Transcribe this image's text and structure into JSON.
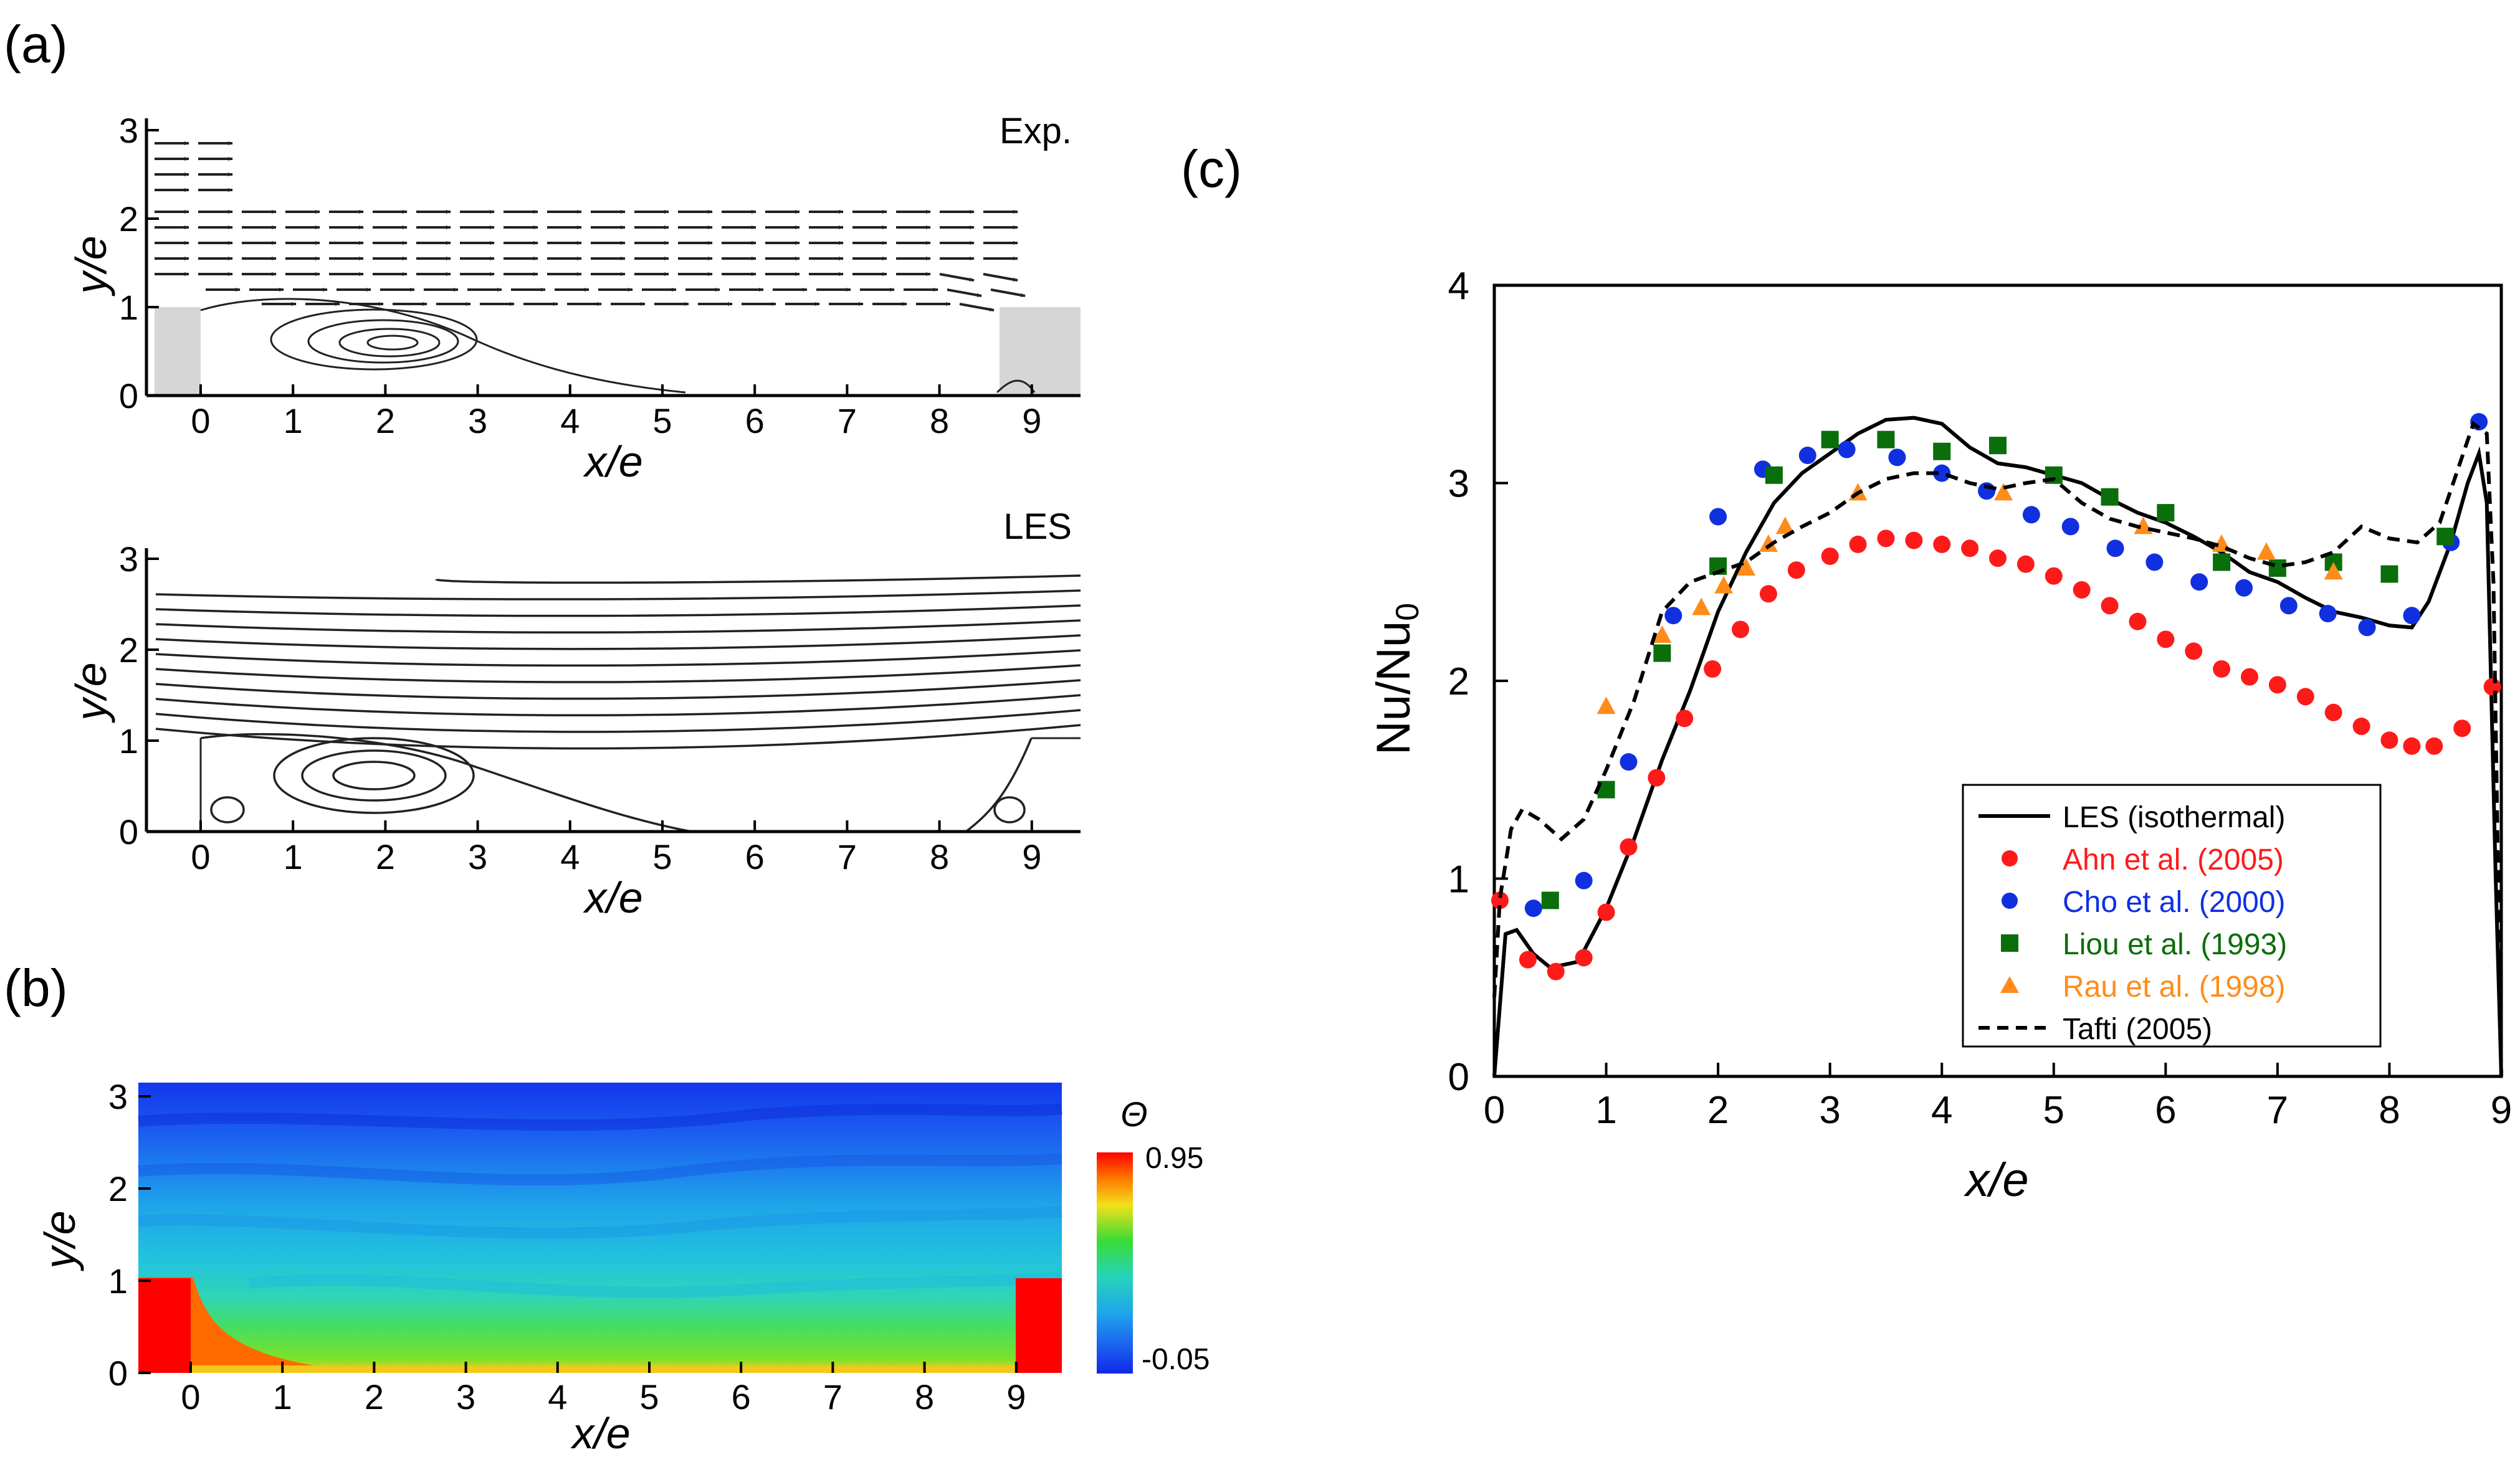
{
  "panels": {
    "a": {
      "tag": "(a)",
      "top": {
        "label": "Exp.",
        "xlabel": "x/e",
        "ylabel": "y/e",
        "x_ticks": [
          "0",
          "1",
          "2",
          "3",
          "4",
          "5",
          "6",
          "7",
          "8",
          "9"
        ],
        "y_ticks": [
          "0",
          "1",
          "2",
          "3"
        ]
      },
      "bottom": {
        "label": "LES",
        "xlabel": "x/e",
        "ylabel": "y/e",
        "x_ticks": [
          "0",
          "1",
          "2",
          "3",
          "4",
          "5",
          "6",
          "7",
          "8",
          "9"
        ],
        "y_ticks": [
          "0",
          "1",
          "2",
          "3"
        ]
      }
    },
    "b": {
      "tag": "(b)",
      "xlabel": "x/e",
      "ylabel": "y/e",
      "x_ticks": [
        "0",
        "1",
        "2",
        "3",
        "4",
        "5",
        "6",
        "7",
        "8",
        "9"
      ],
      "y_ticks": [
        "0",
        "1",
        "2",
        "3"
      ],
      "colorbar": {
        "symbol": "Θ",
        "max_label": "0.95",
        "min_label": "-0.05",
        "min": -0.05,
        "max": 0.95
      },
      "colors": {
        "hot": "#ff0000",
        "cold": "#0033ee"
      }
    },
    "c": {
      "tag": "(c)"
    }
  },
  "chart_data": {
    "type": "line",
    "xlabel": "x/e",
    "ylabel": "Nu/Nu",
    "ylabel_sub": "0",
    "xlim": [
      0,
      9
    ],
    "ylim": [
      0,
      4
    ],
    "x_ticks": [
      0,
      1,
      2,
      3,
      4,
      5,
      6,
      7,
      8,
      9
    ],
    "y_ticks": [
      0,
      1,
      2,
      3,
      4
    ],
    "legend_position": "bottom-right",
    "series": [
      {
        "name": "LES (isothermal)",
        "kind": "line",
        "style": "solid",
        "color": "#000000",
        "points": [
          [
            0.0,
            0.0
          ],
          [
            0.1,
            0.72
          ],
          [
            0.2,
            0.74
          ],
          [
            0.35,
            0.62
          ],
          [
            0.5,
            0.55
          ],
          [
            0.75,
            0.58
          ],
          [
            1.0,
            0.85
          ],
          [
            1.25,
            1.2
          ],
          [
            1.5,
            1.6
          ],
          [
            1.75,
            1.95
          ],
          [
            2.0,
            2.35
          ],
          [
            2.25,
            2.65
          ],
          [
            2.5,
            2.9
          ],
          [
            2.75,
            3.05
          ],
          [
            3.0,
            3.15
          ],
          [
            3.25,
            3.25
          ],
          [
            3.5,
            3.32
          ],
          [
            3.75,
            3.33
          ],
          [
            4.0,
            3.3
          ],
          [
            4.25,
            3.18
          ],
          [
            4.5,
            3.1
          ],
          [
            4.75,
            3.08
          ],
          [
            5.0,
            3.04
          ],
          [
            5.25,
            3.0
          ],
          [
            5.5,
            2.92
          ],
          [
            5.75,
            2.85
          ],
          [
            6.0,
            2.8
          ],
          [
            6.25,
            2.73
          ],
          [
            6.5,
            2.65
          ],
          [
            6.75,
            2.55
          ],
          [
            7.0,
            2.5
          ],
          [
            7.25,
            2.42
          ],
          [
            7.5,
            2.35
          ],
          [
            7.75,
            2.32
          ],
          [
            8.0,
            2.28
          ],
          [
            8.2,
            2.27
          ],
          [
            8.35,
            2.4
          ],
          [
            8.55,
            2.7
          ],
          [
            8.7,
            3.0
          ],
          [
            8.8,
            3.15
          ],
          [
            8.87,
            2.9
          ],
          [
            8.95,
            1.0
          ],
          [
            9.0,
            0.0
          ]
        ]
      },
      {
        "name": "Ahn et al. (2005)",
        "kind": "scatter",
        "marker": "circle",
        "color": "#ff1a1a",
        "points": [
          [
            0.05,
            0.89
          ],
          [
            0.3,
            0.59
          ],
          [
            0.55,
            0.53
          ],
          [
            0.8,
            0.6
          ],
          [
            1.0,
            0.83
          ],
          [
            1.2,
            1.16
          ],
          [
            1.45,
            1.51
          ],
          [
            1.7,
            1.81
          ],
          [
            1.95,
            2.06
          ],
          [
            2.2,
            2.26
          ],
          [
            2.45,
            2.44
          ],
          [
            2.7,
            2.56
          ],
          [
            3.0,
            2.63
          ],
          [
            3.25,
            2.69
          ],
          [
            3.5,
            2.72
          ],
          [
            3.75,
            2.71
          ],
          [
            4.0,
            2.69
          ],
          [
            4.25,
            2.67
          ],
          [
            4.5,
            2.62
          ],
          [
            4.75,
            2.59
          ],
          [
            5.0,
            2.53
          ],
          [
            5.25,
            2.46
          ],
          [
            5.5,
            2.38
          ],
          [
            5.75,
            2.3
          ],
          [
            6.0,
            2.21
          ],
          [
            6.25,
            2.15
          ],
          [
            6.5,
            2.06
          ],
          [
            6.75,
            2.02
          ],
          [
            7.0,
            1.98
          ],
          [
            7.25,
            1.92
          ],
          [
            7.5,
            1.84
          ],
          [
            7.75,
            1.77
          ],
          [
            8.0,
            1.7
          ],
          [
            8.2,
            1.67
          ],
          [
            8.4,
            1.67
          ],
          [
            8.65,
            1.76
          ],
          [
            8.92,
            1.97
          ]
        ]
      },
      {
        "name": "Cho et al. (2000)",
        "kind": "scatter",
        "marker": "circle",
        "color": "#1030e0",
        "points": [
          [
            0.35,
            0.85
          ],
          [
            0.8,
            0.99
          ],
          [
            1.2,
            1.59
          ],
          [
            1.6,
            2.33
          ],
          [
            2.0,
            2.83
          ],
          [
            2.4,
            3.07
          ],
          [
            2.8,
            3.14
          ],
          [
            3.15,
            3.17
          ],
          [
            3.6,
            3.13
          ],
          [
            4.0,
            3.05
          ],
          [
            4.4,
            2.96
          ],
          [
            4.8,
            2.84
          ],
          [
            5.15,
            2.78
          ],
          [
            5.55,
            2.67
          ],
          [
            5.9,
            2.6
          ],
          [
            6.3,
            2.5
          ],
          [
            6.7,
            2.47
          ],
          [
            7.1,
            2.38
          ],
          [
            7.45,
            2.34
          ],
          [
            7.8,
            2.27
          ],
          [
            8.2,
            2.33
          ],
          [
            8.55,
            2.7
          ],
          [
            8.8,
            3.31
          ]
        ]
      },
      {
        "name": "Liou et al. (1993)",
        "kind": "scatter",
        "marker": "square",
        "color": "#0a6e0a",
        "points": [
          [
            0.5,
            0.89
          ],
          [
            1.0,
            1.45
          ],
          [
            1.5,
            2.14
          ],
          [
            2.0,
            2.58
          ],
          [
            2.5,
            3.04
          ],
          [
            3.0,
            3.22
          ],
          [
            3.5,
            3.22
          ],
          [
            4.0,
            3.16
          ],
          [
            4.5,
            3.19
          ],
          [
            5.0,
            3.04
          ],
          [
            5.5,
            2.93
          ],
          [
            6.0,
            2.85
          ],
          [
            6.5,
            2.6
          ],
          [
            7.0,
            2.57
          ],
          [
            7.5,
            2.6
          ],
          [
            8.0,
            2.54
          ],
          [
            8.5,
            2.73
          ]
        ]
      },
      {
        "name": "Rau et al. (1998)",
        "kind": "scatter",
        "marker": "triangle",
        "color": "#ff8c1a",
        "points": [
          [
            1.0,
            1.87
          ],
          [
            1.5,
            2.23
          ],
          [
            1.85,
            2.37
          ],
          [
            2.05,
            2.48
          ],
          [
            2.25,
            2.57
          ],
          [
            2.45,
            2.69
          ],
          [
            2.6,
            2.78
          ],
          [
            3.25,
            2.95
          ],
          [
            4.55,
            2.95
          ],
          [
            5.8,
            2.78
          ],
          [
            6.5,
            2.69
          ],
          [
            6.9,
            2.65
          ],
          [
            7.5,
            2.55
          ]
        ]
      },
      {
        "name": "Tafti (2005)",
        "kind": "line",
        "style": "dashed",
        "color": "#000000",
        "points": [
          [
            0.0,
            0.4
          ],
          [
            0.05,
            0.9
          ],
          [
            0.15,
            1.25
          ],
          [
            0.25,
            1.35
          ],
          [
            0.4,
            1.3
          ],
          [
            0.6,
            1.2
          ],
          [
            0.8,
            1.3
          ],
          [
            1.0,
            1.55
          ],
          [
            1.25,
            1.9
          ],
          [
            1.5,
            2.35
          ],
          [
            1.75,
            2.5
          ],
          [
            2.0,
            2.55
          ],
          [
            2.25,
            2.6
          ],
          [
            2.5,
            2.7
          ],
          [
            2.75,
            2.78
          ],
          [
            3.0,
            2.85
          ],
          [
            3.25,
            2.95
          ],
          [
            3.5,
            3.02
          ],
          [
            3.75,
            3.05
          ],
          [
            4.0,
            3.05
          ],
          [
            4.25,
            3.0
          ],
          [
            4.5,
            2.97
          ],
          [
            4.75,
            3.0
          ],
          [
            5.0,
            3.02
          ],
          [
            5.25,
            2.9
          ],
          [
            5.5,
            2.82
          ],
          [
            5.75,
            2.78
          ],
          [
            6.0,
            2.75
          ],
          [
            6.25,
            2.72
          ],
          [
            6.5,
            2.68
          ],
          [
            6.75,
            2.62
          ],
          [
            7.0,
            2.58
          ],
          [
            7.25,
            2.6
          ],
          [
            7.5,
            2.65
          ],
          [
            7.75,
            2.78
          ],
          [
            8.0,
            2.72
          ],
          [
            8.25,
            2.7
          ],
          [
            8.45,
            2.8
          ],
          [
            8.6,
            3.05
          ],
          [
            8.75,
            3.3
          ],
          [
            8.87,
            3.25
          ],
          [
            8.93,
            2.5
          ],
          [
            9.0,
            0.0
          ]
        ]
      }
    ]
  }
}
